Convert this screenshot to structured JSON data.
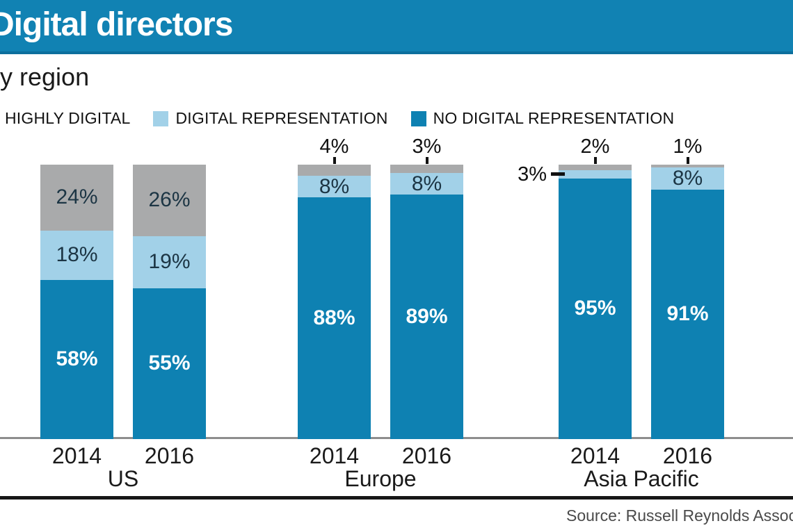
{
  "header": {
    "title": "Digital directors"
  },
  "subtitle": "By region",
  "legend": [
    {
      "label": "HIGHLY DIGITAL",
      "color": "#a9aaab"
    },
    {
      "label": "DIGITAL REPRESENTATION",
      "color": "#a2d1e8"
    },
    {
      "label": "NO DIGITAL REPRESENTATION",
      "color": "#0e81b2"
    }
  ],
  "source": "Source: Russell Reynolds Associates",
  "chart_data": {
    "type": "bar",
    "stacked": true,
    "unit": "%",
    "ylim": [
      0,
      100
    ],
    "grid": false,
    "legend_position": "top",
    "series_bottom_to_top": [
      "NO DIGITAL REPRESENTATION",
      "DIGITAL REPRESENTATION",
      "HIGHLY DIGITAL"
    ],
    "groups": [
      {
        "region": "US",
        "bars": [
          {
            "year": "2014",
            "segments": [
              {
                "series": "NO DIGITAL REPRESENTATION",
                "value": 58,
                "label": "58%",
                "label_placement": "inside"
              },
              {
                "series": "DIGITAL REPRESENTATION",
                "value": 18,
                "label": "18%",
                "label_placement": "inside"
              },
              {
                "series": "HIGHLY DIGITAL",
                "value": 24,
                "label": "24%",
                "label_placement": "inside"
              }
            ]
          },
          {
            "year": "2016",
            "segments": [
              {
                "series": "NO DIGITAL REPRESENTATION",
                "value": 55,
                "label": "55%",
                "label_placement": "inside"
              },
              {
                "series": "DIGITAL REPRESENTATION",
                "value": 19,
                "label": "19%",
                "label_placement": "inside"
              },
              {
                "series": "HIGHLY DIGITAL",
                "value": 26,
                "label": "26%",
                "label_placement": "inside"
              }
            ]
          }
        ]
      },
      {
        "region": "Europe",
        "bars": [
          {
            "year": "2014",
            "segments": [
              {
                "series": "NO DIGITAL REPRESENTATION",
                "value": 88,
                "label": "88%",
                "label_placement": "inside"
              },
              {
                "series": "DIGITAL REPRESENTATION",
                "value": 8,
                "label": "8%",
                "label_placement": "inside"
              },
              {
                "series": "HIGHLY DIGITAL",
                "value": 4,
                "label": "4%",
                "label_placement": "above"
              }
            ]
          },
          {
            "year": "2016",
            "segments": [
              {
                "series": "NO DIGITAL REPRESENTATION",
                "value": 89,
                "label": "89%",
                "label_placement": "inside"
              },
              {
                "series": "DIGITAL REPRESENTATION",
                "value": 8,
                "label": "8%",
                "label_placement": "inside"
              },
              {
                "series": "HIGHLY DIGITAL",
                "value": 3,
                "label": "3%",
                "label_placement": "above"
              }
            ]
          }
        ]
      },
      {
        "region": "Asia Pacific",
        "bars": [
          {
            "year": "2014",
            "segments": [
              {
                "series": "NO DIGITAL REPRESENTATION",
                "value": 95,
                "label": "95%",
                "label_placement": "inside"
              },
              {
                "series": "DIGITAL REPRESENTATION",
                "value": 3,
                "label": "3%",
                "label_placement": "left"
              },
              {
                "series": "HIGHLY DIGITAL",
                "value": 2,
                "label": "2%",
                "label_placement": "above"
              }
            ]
          },
          {
            "year": "2016",
            "segments": [
              {
                "series": "NO DIGITAL REPRESENTATION",
                "value": 91,
                "label": "91%",
                "label_placement": "inside"
              },
              {
                "series": "DIGITAL REPRESENTATION",
                "value": 8,
                "label": "8%",
                "label_placement": "inside"
              },
              {
                "series": "HIGHLY DIGITAL",
                "value": 1,
                "label": "1%",
                "label_placement": "above"
              }
            ]
          }
        ]
      }
    ]
  }
}
